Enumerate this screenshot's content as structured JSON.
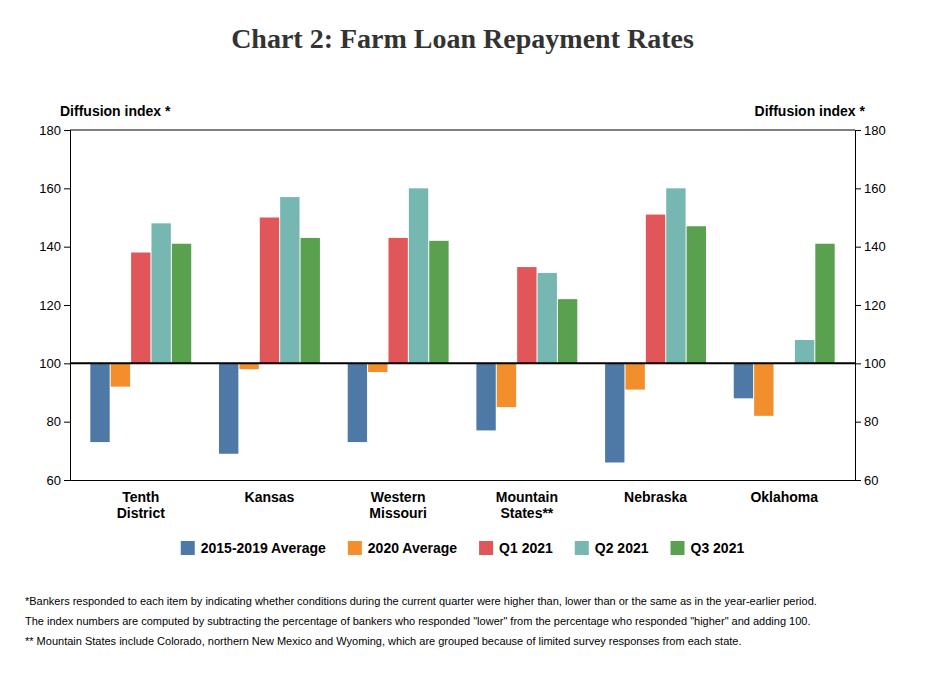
{
  "chart_data": {
    "type": "bar",
    "title": "Chart 2: Farm Loan Repayment Rates",
    "y_label": "Diffusion index *",
    "y2_label": "Diffusion index *",
    "categories": [
      "Tenth\nDistrict",
      "Kansas",
      "Western\nMissouri",
      "Mountain\nStates**",
      "Nebraska",
      "Oklahoma"
    ],
    "series": [
      {
        "name": "2015-2019 Average",
        "values": [
          73,
          69,
          73,
          77,
          66,
          88
        ]
      },
      {
        "name": "2020 Average",
        "values": [
          92,
          98,
          97,
          85,
          91,
          82
        ]
      },
      {
        "name": "Q1 2021",
        "values": [
          138,
          150,
          143,
          133,
          151,
          100
        ]
      },
      {
        "name": "Q2 2021",
        "values": [
          148,
          157,
          160,
          131,
          160,
          108
        ]
      },
      {
        "name": "Q3 2021",
        "values": [
          141,
          143,
          142,
          122,
          147,
          141
        ]
      }
    ],
    "baseline": 100,
    "ylim": [
      60,
      180
    ],
    "yticks": [
      60,
      80,
      100,
      120,
      140,
      160,
      180
    ],
    "y2lim": [
      60,
      180
    ],
    "y2ticks": [
      60,
      80,
      100,
      120,
      140,
      160,
      180
    ],
    "grid": false,
    "legend": "bottom",
    "footnotes": [
      "*Bankers responded to each item by indicating whether conditions during the current quarter were higher than, lower than or the same as in the year-earlier period.",
      "The index numbers are computed by subtracting the percentage of bankers who responded \"lower\" from the percentage who responded \"higher\" and adding 100.",
      "** Mountain States include Colorado, northern New Mexico and Wyoming, which are grouped because of limited survey responses from each state."
    ]
  }
}
